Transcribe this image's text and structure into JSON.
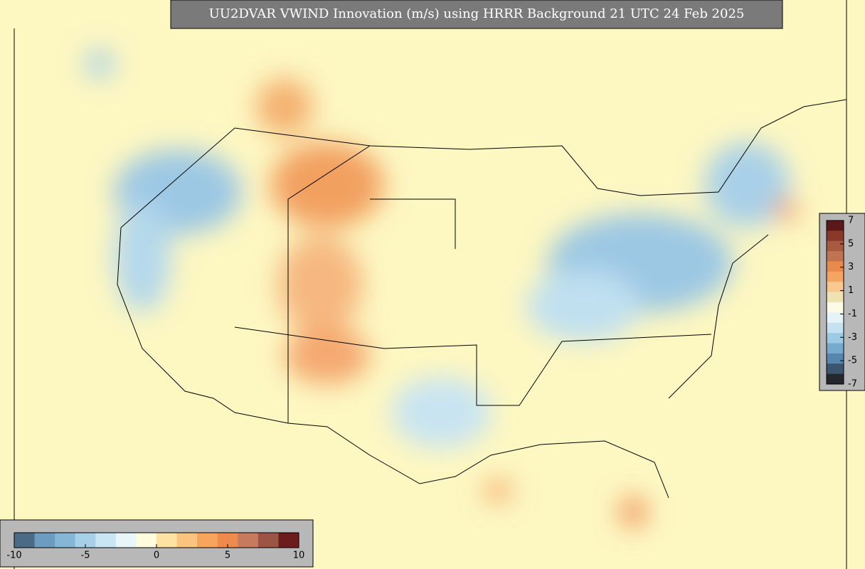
{
  "title": "UU2DVAR VWIND Innovation (m/s) using HRRR Background 21 UTC 24 Feb 2025",
  "colorbars": [
    {
      "orientation": "vertical",
      "lim": [
        -7,
        7
      ],
      "ticks": [
        7,
        5,
        3,
        1,
        -1,
        -3,
        -5,
        -7
      ],
      "colors": [
        "#5c1818",
        "#8a3828",
        "#a85a40",
        "#c27452",
        "#e88a4c",
        "#f5a562",
        "#f8c88e",
        "#efe3b4",
        "#fdfbe6",
        "#e6f3f8",
        "#c6e2f0",
        "#9ecbe3",
        "#76abcf",
        "#5686ad",
        "#3a566e",
        "#24282c"
      ]
    },
    {
      "orientation": "horizontal",
      "lim": [
        -10,
        10
      ],
      "ticks": [
        -10,
        -5,
        0,
        5,
        10
      ],
      "colors": [
        "#4a6a86",
        "#6e9cc0",
        "#86b6d6",
        "#a6d0e8",
        "#c8e6f4",
        "#e8f6fa",
        "#fefcdc",
        "#fde2a4",
        "#fbc47e",
        "#f6a45e",
        "#ee8a4c",
        "#c87a5e",
        "#9c5444",
        "#6c1c1c"
      ]
    }
  ]
}
